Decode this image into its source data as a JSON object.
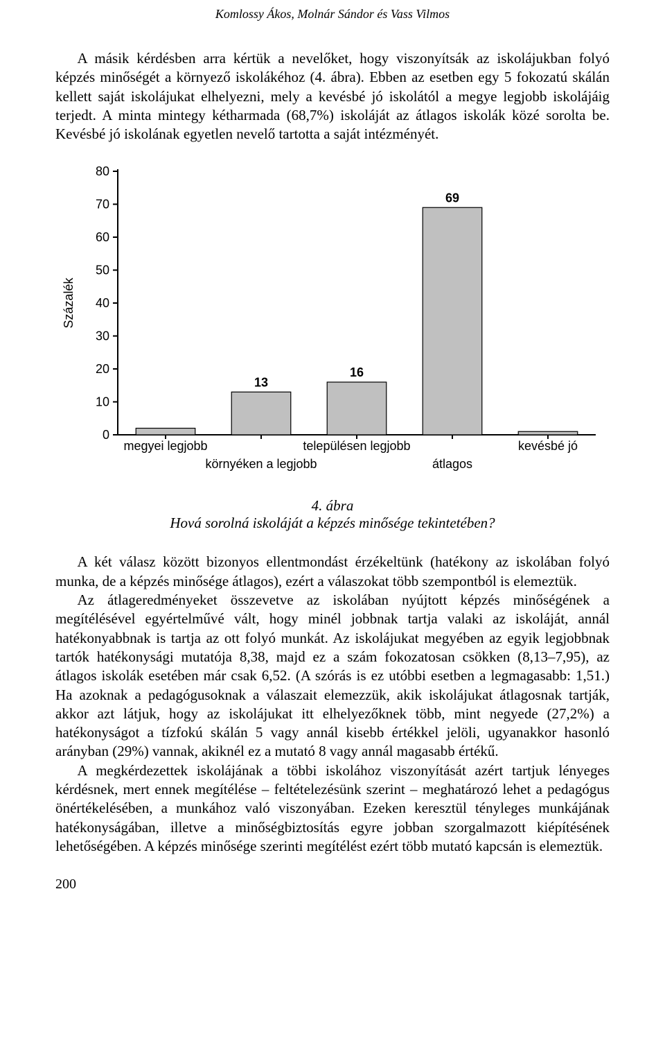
{
  "running_head": "Komlossy Ákos, Molnár Sándor és Vass Vilmos",
  "para1": "A másik kérdésben arra kértük a nevelőket, hogy viszonyítsák az iskolájukban folyó képzés minőségét a környező iskolákéhoz (4. ábra). Ebben az esetben egy 5 fokozatú skálán kellett saját iskolájukat elhelyezni, mely a kevésbé jó iskolától a megye legjobb iskolájáig terjedt. A minta mintegy kétharmada (68,7%) iskoláját az átlagos iskolák közé sorolta be. Kevésbé jó iskolának egyetlen nevelő tartotta a saját intézményét.",
  "chart": {
    "type": "bar",
    "y_label": "Százalék",
    "y_ticks": [
      0,
      10,
      20,
      30,
      40,
      50,
      60,
      70,
      80
    ],
    "categories": [
      "megyei legjobb",
      "környéken a legjobb",
      "településen legjobb",
      "átlagos",
      "kevésbé jó"
    ],
    "values": [
      2,
      13,
      16,
      69,
      1
    ],
    "show_value_label": [
      false,
      true,
      true,
      true,
      false
    ],
    "bar_fill": "#c0c0c0",
    "bar_stroke": "#000000",
    "axis_color": "#000000",
    "background": "#ffffff",
    "frame": false
  },
  "caption_num": "4. ábra",
  "caption_text": "Hová sorolná iskoláját a képzés minősége tekintetében?",
  "para2": "A két válasz között bizonyos ellentmondást érzékeltünk (hatékony az iskolában folyó munka, de a képzés minősége átlagos), ezért a válaszokat több szempontból is elemeztük.",
  "para3": "Az átlageredményeket összevetve az iskolában nyújtott képzés minőségének a megítélésével egyértelművé vált, hogy minél jobbnak tartja valaki az iskoláját, annál hatékonyabbnak is tartja az ott folyó munkát. Az iskolájukat megyében az egyik legjobbnak tartók hatékonysági mutatója 8,38, majd ez a szám fokozatosan csökken (8,13–7,95), az átlagos iskolák esetében már csak 6,52. (A szórás is ez utóbbi esetben a legmagasabb: 1,51.) Ha azoknak a pedagógusoknak a válaszait elemezzük, akik iskolájukat átlagosnak tartják, akkor azt látjuk, hogy az iskolájukat itt elhelyezőknek több, mint negyede (27,2%) a hatékonyságot a tízfokú skálán 5 vagy annál kisebb értékkel jelöli, ugyanakkor hasonló arányban (29%) vannak, akiknél ez a mutató 8 vagy annál magasabb értékű.",
  "para4": "A megkérdezettek iskolájának a többi iskolához viszonyítását azért tartjuk lényeges kérdésnek, mert ennek megítélése – feltételezésünk szerint – meghatározó lehet a pedagógus önértékelésében, a munkához való viszonyában. Ezeken keresztül tényleges munkájának hatékonyságában, illetve a minőségbiztosítás egyre jobban szorgalmazott kiépítésének lehetőségében. A képzés minősége szerinti megítélést ezért több mutató kapcsán is elemeztük.",
  "page_number": "200"
}
